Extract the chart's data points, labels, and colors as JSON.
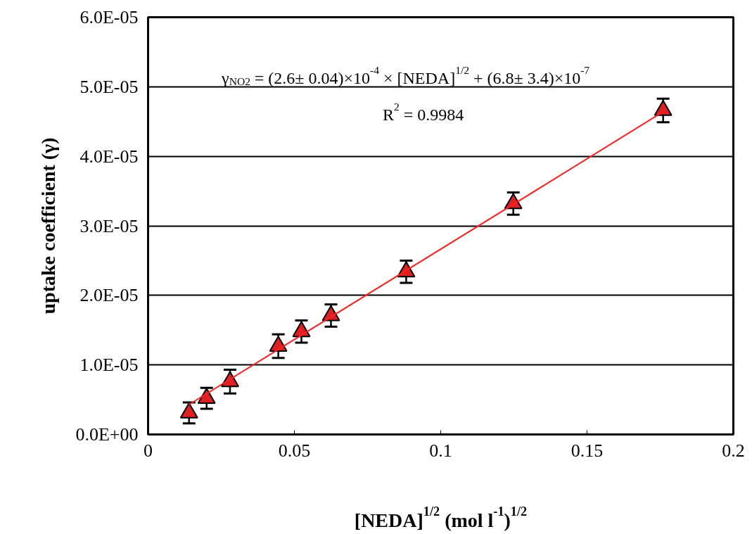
{
  "chart_data": {
    "type": "scatter",
    "xlabel": "[NEDA]$^{1/2}$ (mol l$^{-1}$)$^{1/2}$",
    "ylabel": "uptake coefficient (γ)",
    "xlim": [
      0,
      0.2
    ],
    "xticks": [
      0,
      0.05,
      0.1,
      0.15,
      0.2
    ],
    "ylim": [
      0,
      6e-05
    ],
    "yticks": [
      {
        "value": 0,
        "label": "0.0E+00"
      },
      {
        "value": 1e-05,
        "label": "1.0E-05"
      },
      {
        "value": 2e-05,
        "label": "2.0E-05"
      },
      {
        "value": 3e-05,
        "label": "3.0E-05"
      },
      {
        "value": 4e-05,
        "label": "4.0E-05"
      },
      {
        "value": 5e-05,
        "label": "5.0E-05"
      },
      {
        "value": 6e-05,
        "label": "6.0E-05"
      }
    ],
    "grid": "y",
    "marker": "triangle",
    "series": [
      {
        "color": "#e02020",
        "x": [
          0.014,
          0.02,
          0.028,
          0.0445,
          0.0524,
          0.0625,
          0.0882,
          0.1248,
          0.176
        ],
        "values": [
          3.1e-06,
          5.2e-06,
          7.6e-06,
          1.27e-05,
          1.48e-05,
          1.71e-05,
          2.34e-05,
          3.32e-05,
          4.66e-05
        ],
        "errors": [
          1.5e-06,
          1.5e-06,
          1.7e-06,
          1.7e-06,
          1.6e-06,
          1.6e-06,
          1.6e-06,
          1.6e-06,
          1.7e-06
        ]
      },
      {
        "type": "line",
        "marker": "none",
        "color": "#ff2020",
        "line_style": "solid",
        "x": [
          0.014,
          0.176
        ],
        "values": [
          4.3e-06,
          4.64e-05
        ]
      }
    ],
    "annotations": [
      "γ$_{NO2}$ = (2.6± 0.04)×10$^{-4}$ × [NEDA]$^{1/2}$ + (6.8± 3.4)×10$^{-7}$",
      "R$^{2}$ = 0.9984"
    ]
  }
}
